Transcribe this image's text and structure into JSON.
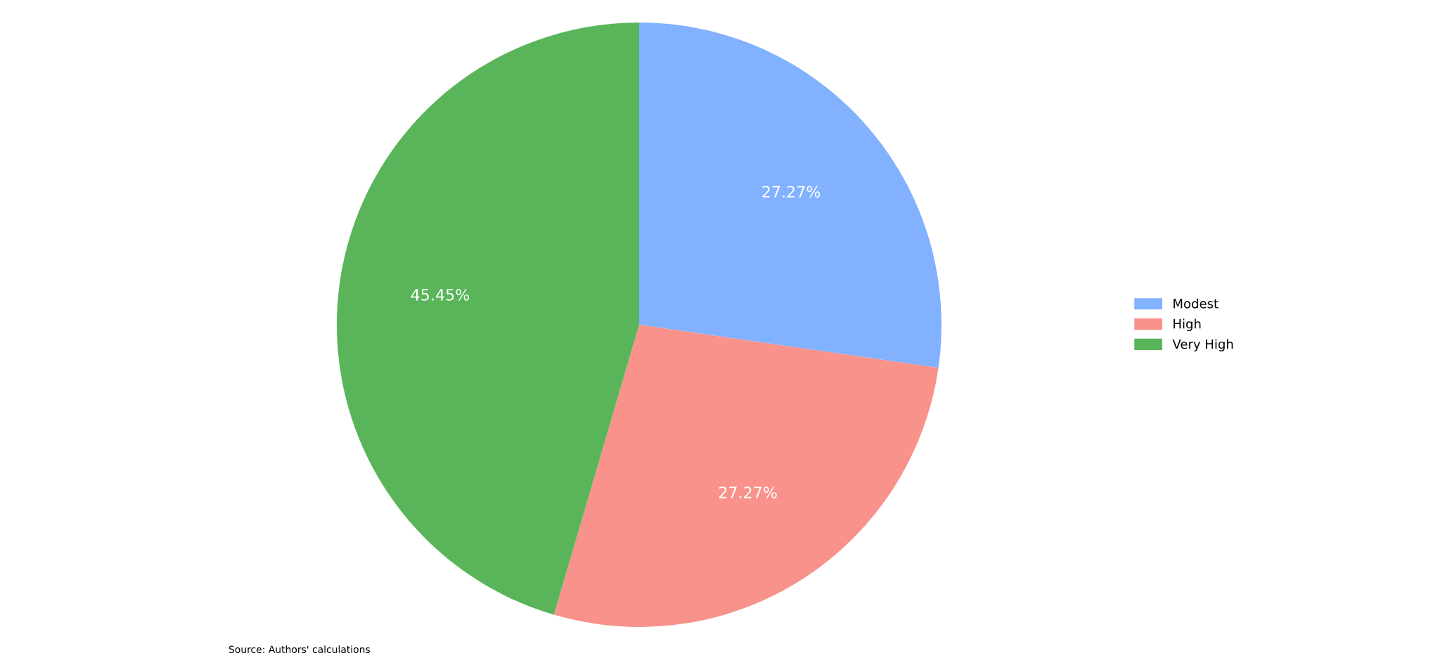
{
  "chart_data": {
    "type": "pie",
    "categories": [
      "Modest",
      "High",
      "Very High"
    ],
    "values": [
      27.27,
      27.27,
      45.45
    ],
    "value_labels": [
      "27.27%",
      "27.27%",
      "45.45%"
    ],
    "colors": [
      "#82b1ff",
      "#f8928a",
      "#5ab55a"
    ],
    "legend": "right",
    "annotations": [
      "Source: Authors' calculations"
    ]
  }
}
